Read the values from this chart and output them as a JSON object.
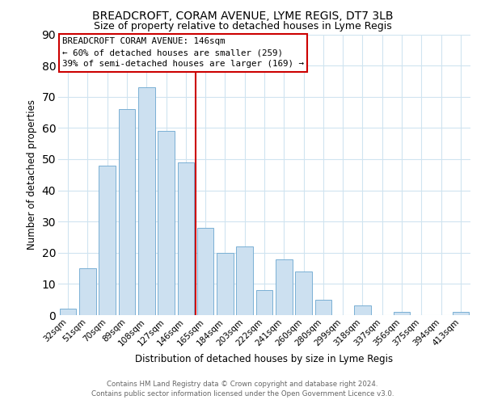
{
  "title": "BREADCROFT, CORAM AVENUE, LYME REGIS, DT7 3LB",
  "subtitle": "Size of property relative to detached houses in Lyme Regis",
  "xlabel": "Distribution of detached houses by size in Lyme Regis",
  "ylabel": "Number of detached properties",
  "footer_line1": "Contains HM Land Registry data © Crown copyright and database right 2024.",
  "footer_line2": "Contains public sector information licensed under the Open Government Licence v3.0.",
  "bins": [
    "32sqm",
    "51sqm",
    "70sqm",
    "89sqm",
    "108sqm",
    "127sqm",
    "146sqm",
    "165sqm",
    "184sqm",
    "203sqm",
    "222sqm",
    "241sqm",
    "260sqm",
    "280sqm",
    "299sqm",
    "318sqm",
    "337sqm",
    "356sqm",
    "375sqm",
    "394sqm",
    "413sqm"
  ],
  "values": [
    2,
    15,
    48,
    66,
    73,
    59,
    49,
    28,
    20,
    22,
    8,
    18,
    14,
    5,
    0,
    3,
    0,
    1,
    0,
    0,
    1
  ],
  "highlight_index": 6,
  "bar_color": "#cce0f0",
  "bar_edge_color": "#7ab0d4",
  "highlight_line_color": "#cc0000",
  "ylim": [
    0,
    90
  ],
  "yticks": [
    0,
    10,
    20,
    30,
    40,
    50,
    60,
    70,
    80,
    90
  ],
  "annotation_title": "BREADCROFT CORAM AVENUE: 146sqm",
  "annotation_line2": "← 60% of detached houses are smaller (259)",
  "annotation_line3": "39% of semi-detached houses are larger (169) →",
  "annotation_box_facecolor": "#ffffff",
  "annotation_box_edgecolor": "#cc0000",
  "grid_color": "#d0e4f0",
  "title_fontsize": 10,
  "subtitle_fontsize": 9
}
